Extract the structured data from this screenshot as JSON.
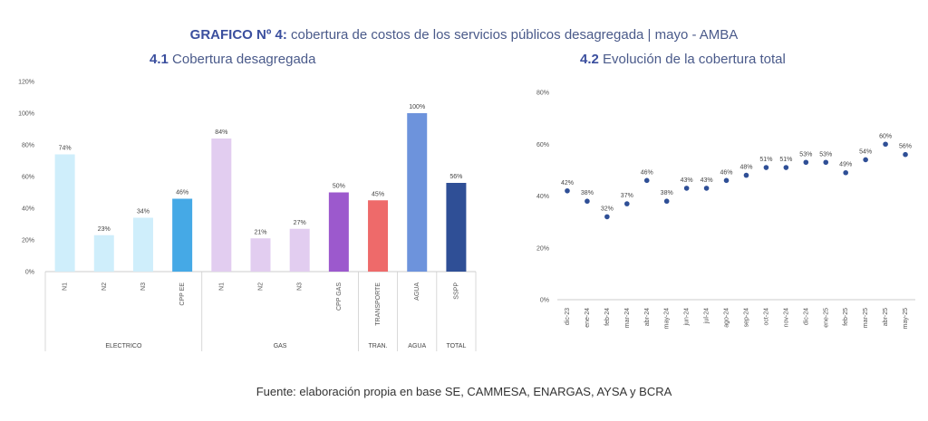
{
  "title": {
    "lead": "GRAFICO Nº 4:",
    "rest": "cobertura de costos de los servicios públicos desagregada | mayo - AMBA"
  },
  "source": "Fuente: elaboración propia en base SE, CAMMESA, ENARGAS, AYSA y BCRA",
  "chart_data": [
    {
      "type": "bar",
      "title_num": "4.1",
      "title_text": "Cobertura desagregada",
      "ylim": [
        0,
        120
      ],
      "yticks": [
        "0%",
        "20%",
        "40%",
        "60%",
        "80%",
        "100%",
        "120%"
      ],
      "categories": [
        "N1",
        "N2",
        "N3",
        "CPP EE",
        "N1",
        "N2",
        "N3",
        "CPP GAS",
        "TRANSPORTE",
        "AGUA",
        "SSPP"
      ],
      "values": [
        74,
        23,
        34,
        46,
        84,
        21,
        27,
        50,
        45,
        100,
        56
      ],
      "value_labels": [
        "74%",
        "23%",
        "34%",
        "46%",
        "84%",
        "21%",
        "27%",
        "50%",
        "45%",
        "100%",
        "56%"
      ],
      "colors": [
        "#cfeefb",
        "#cfeefb",
        "#cfeefb",
        "#45a9e6",
        "#e2cdf0",
        "#e2cdf0",
        "#e2cdf0",
        "#9c59cd",
        "#ee6a6a",
        "#6d93dc",
        "#2f4f96"
      ],
      "groups": [
        {
          "label": "ELECTRICO",
          "span": 4
        },
        {
          "label": "GAS",
          "span": 4
        },
        {
          "label": "TRAN.",
          "span": 1
        },
        {
          "label": "AGUA",
          "span": 1
        },
        {
          "label": "TOTAL",
          "span": 1
        }
      ],
      "grid": false
    },
    {
      "type": "scatter",
      "title_num": "4.2",
      "title_text": "Evolución de la cobertura total",
      "ylim": [
        0,
        80
      ],
      "yticks": [
        "0%",
        "20%",
        "40%",
        "60%",
        "80%"
      ],
      "x": [
        "dic-23",
        "ene-24",
        "feb-24",
        "mar-24",
        "abr-24",
        "may-24",
        "jun-24",
        "jul-24",
        "ago-24",
        "sep-24",
        "oct-24",
        "nov-24",
        "dic-24",
        "ene-25",
        "feb-25",
        "mar-25",
        "abr-25",
        "may-25"
      ],
      "values": [
        42,
        38,
        32,
        37,
        46,
        38,
        43,
        43,
        46,
        48,
        51,
        51,
        53,
        53,
        49,
        54,
        60,
        56
      ],
      "value_labels": [
        "42%",
        "38%",
        "32%",
        "37%",
        "46%",
        "38%",
        "43%",
        "43%",
        "46%",
        "48%",
        "51%",
        "51%",
        "53%",
        "53%",
        "49%",
        "54%",
        "60%",
        "56%"
      ],
      "color": "#2f4f96",
      "grid": false
    }
  ]
}
